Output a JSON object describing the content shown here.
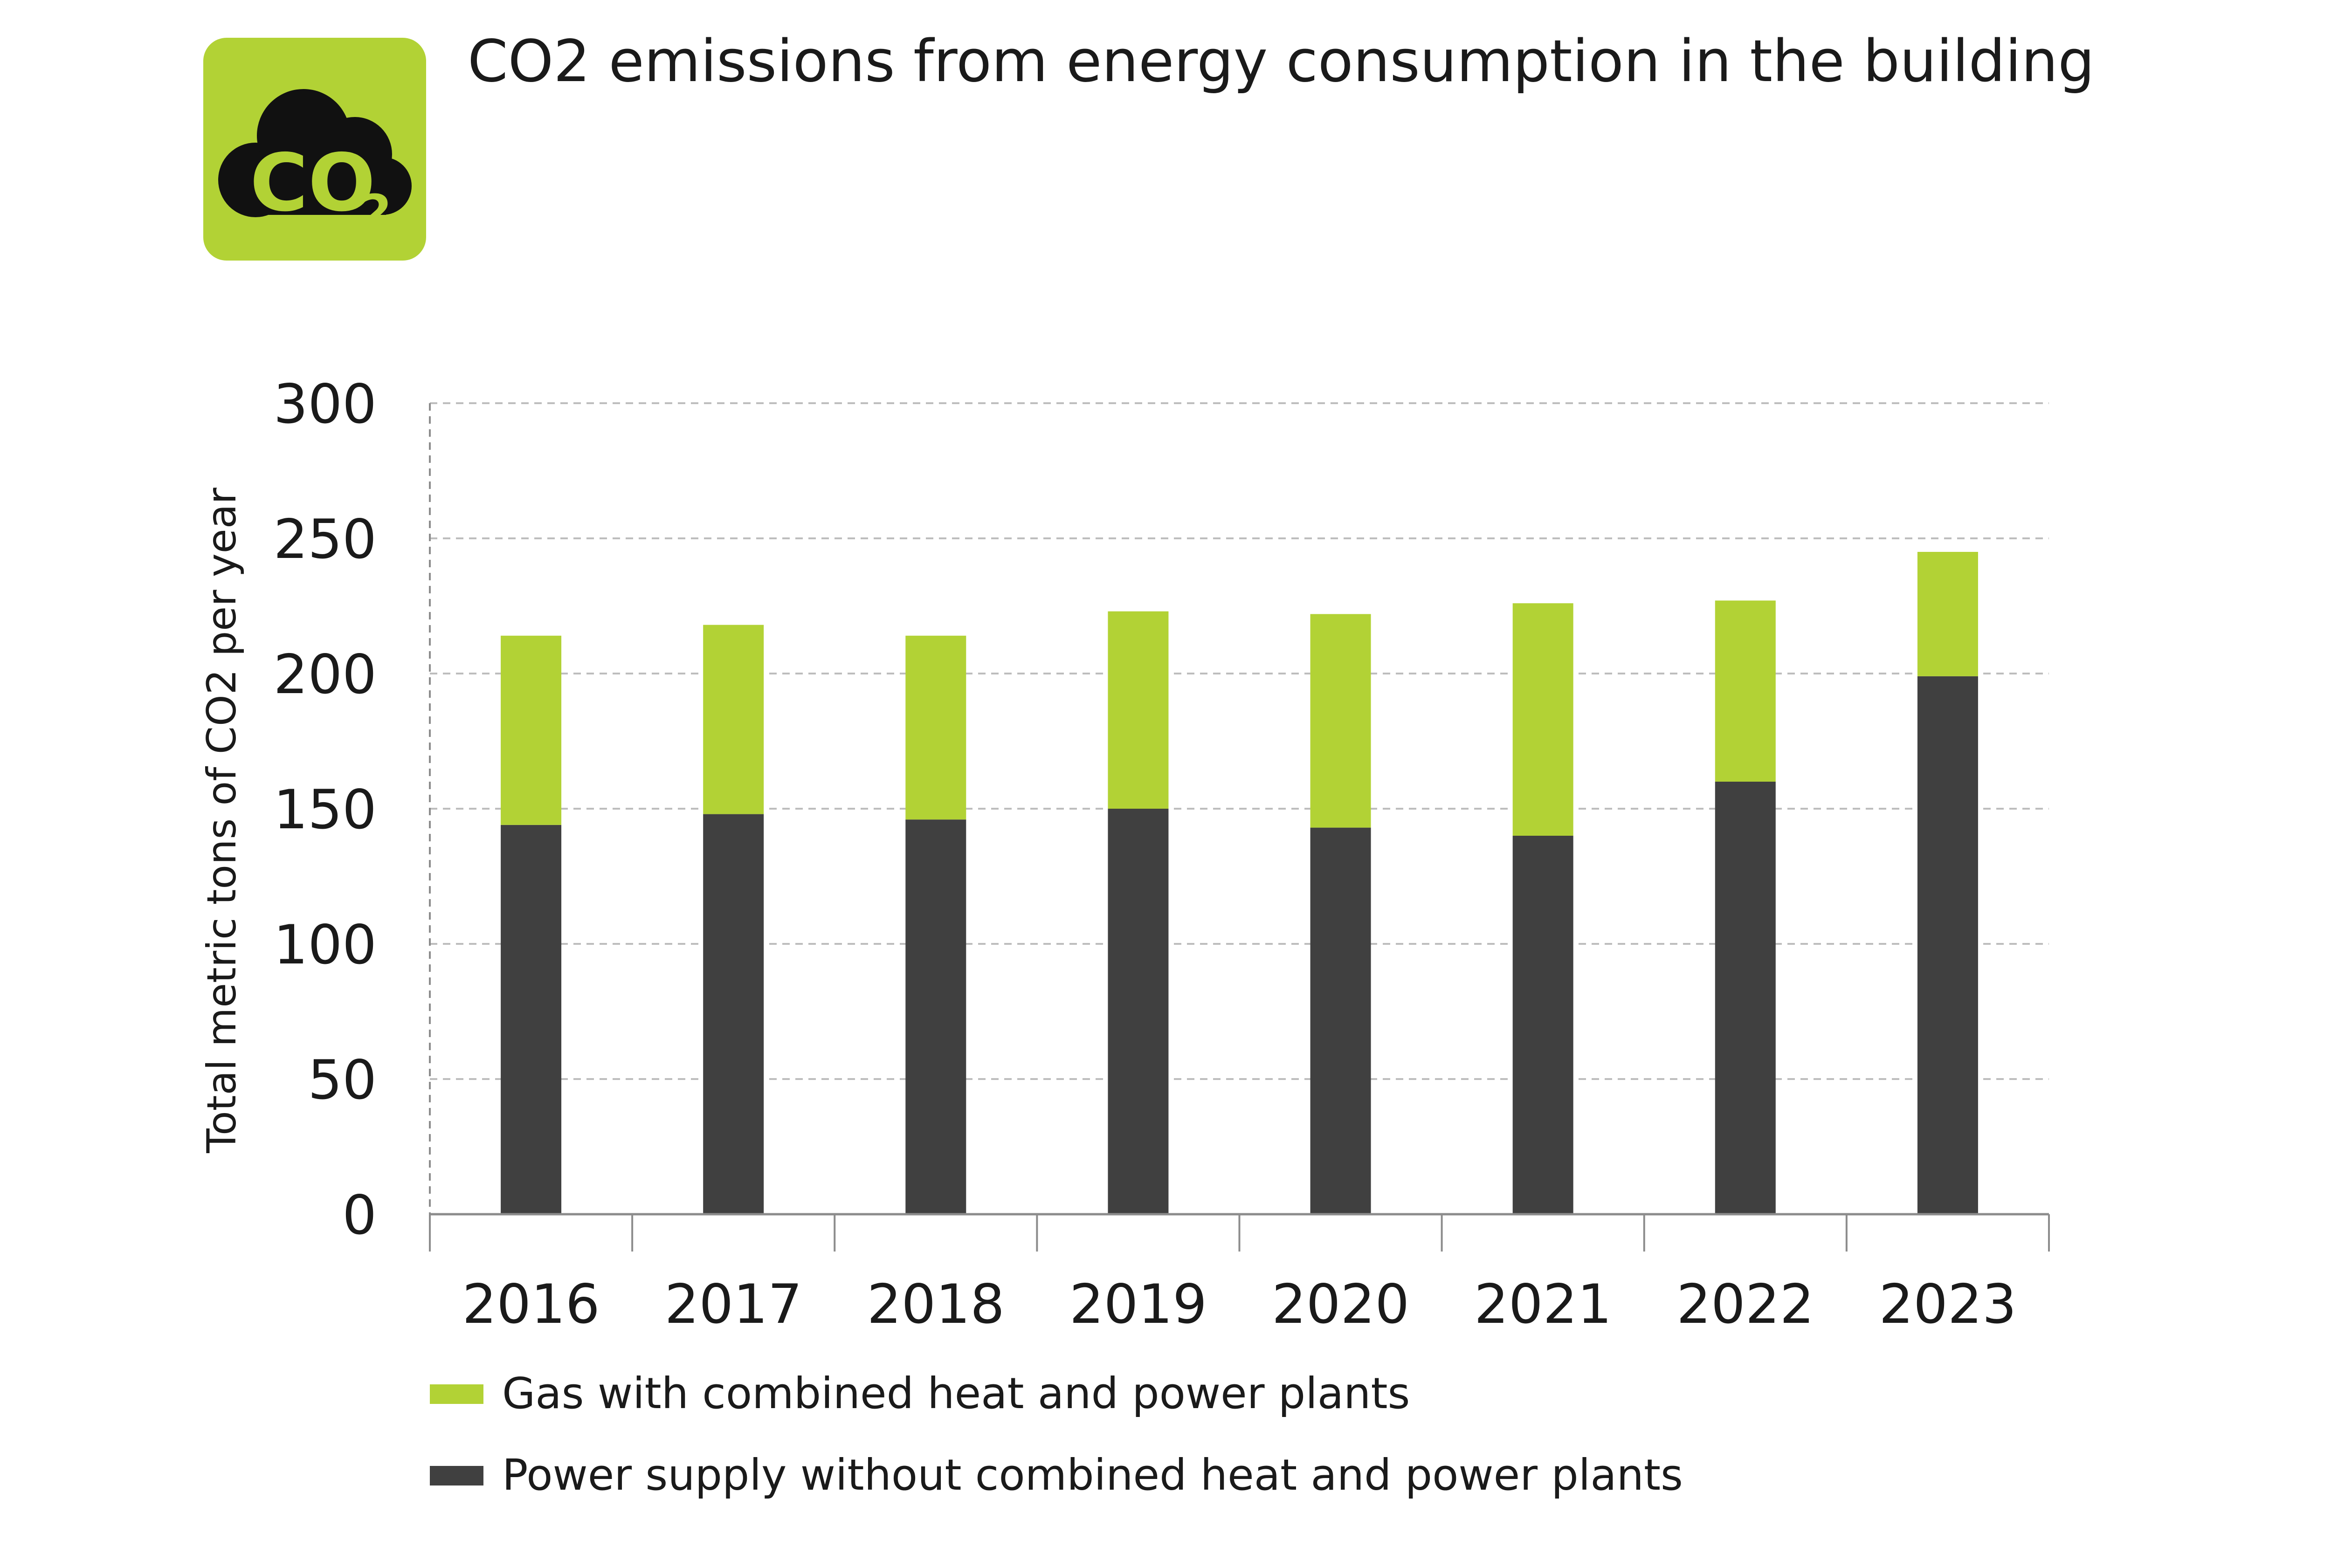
{
  "title": "CO2 emissions from energy consumption in the building",
  "logo": {
    "text": "CO",
    "subscript": "2",
    "icon": "co2-cloud-icon",
    "bg_color": "#b2d235",
    "fg_color": "#111111"
  },
  "colors": {
    "gas": "#b2d235",
    "power": "#404040",
    "grid": "#bdbdbd",
    "axis": "#8c8c8c"
  },
  "chart_data": {
    "type": "bar",
    "stacked": true,
    "categories": [
      "2016",
      "2017",
      "2018",
      "2019",
      "2020",
      "2021",
      "2022",
      "2023"
    ],
    "series": [
      {
        "name": "Power supply without combined heat and power plants",
        "color": "#404040",
        "values": [
          144,
          148,
          146,
          150,
          143,
          140,
          160,
          199
        ]
      },
      {
        "name": "Gas with combined heat and power plants",
        "color": "#b2d235",
        "values": [
          70,
          70,
          68,
          73,
          79,
          86,
          67,
          46
        ]
      }
    ],
    "ylabel": "Total metric tons of CO2 per year",
    "xlabel": "",
    "ylim": [
      0,
      300
    ],
    "yticks": [
      "0",
      "50",
      "100",
      "150",
      "200",
      "250",
      "300"
    ],
    "grid": true,
    "legend_position": "bottom-left"
  },
  "legend": [
    {
      "label": "Gas with combined heat and power plants",
      "color": "#b2d235"
    },
    {
      "label": "Power supply without combined heat and power plants",
      "color": "#404040"
    }
  ]
}
